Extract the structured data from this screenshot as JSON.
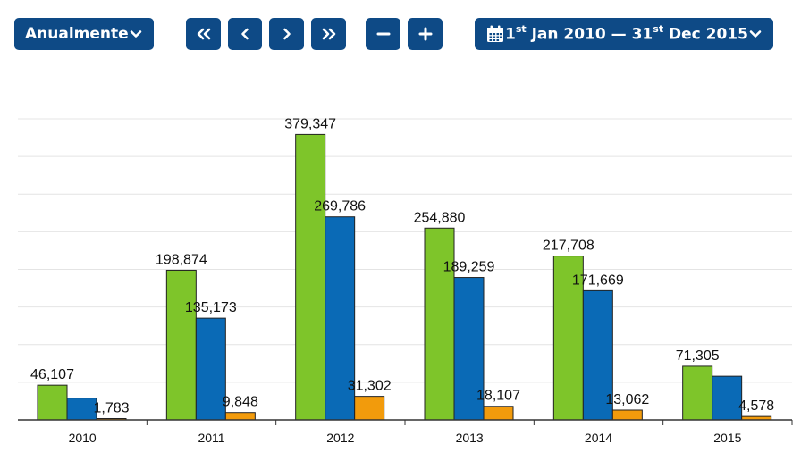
{
  "toolbar": {
    "period_label": "Anualmente",
    "date_range": {
      "start_day": "1",
      "start_suffix": "st",
      "start_rest": "Jan 2010 —",
      "end_day": "31",
      "end_suffix": "st",
      "end_rest": "Dec 2015"
    },
    "icons": {
      "period_dropdown": "chevron-down-icon",
      "first": "double-chevron-left-icon",
      "prev": "chevron-left-icon",
      "next": "chevron-right-icon",
      "last": "double-chevron-right-icon",
      "zoom_out": "minus-icon",
      "zoom_in": "plus-icon",
      "calendar": "calendar-icon",
      "date_dropdown": "chevron-down-icon"
    }
  },
  "colors": {
    "toolbar_bg": "#0e4a86",
    "series": [
      "#7ec52a",
      "#0a6ab6",
      "#f29b0c"
    ],
    "grid": "#e4e4e4",
    "axis": "#333333"
  },
  "chart_data": {
    "type": "bar",
    "categories": [
      "2010",
      "2011",
      "2012",
      "2013",
      "2014",
      "2015"
    ],
    "series": [
      {
        "values": [
          46107,
          198874,
          379347,
          254880,
          217708,
          71305
        ],
        "labels": [
          "46,107",
          "198,874",
          "379,347",
          "254,880",
          "217,708",
          "71,305"
        ]
      },
      {
        "values": [
          29000,
          135173,
          269786,
          189259,
          171669,
          58000
        ],
        "labels": [
          "",
          "135,173",
          "269,786",
          "189,259",
          "171,669",
          ""
        ]
      },
      {
        "values": [
          1783,
          9848,
          31302,
          18107,
          13062,
          4578
        ],
        "labels": [
          "1,783",
          "9,848",
          "31,302",
          "18,107",
          "13,062",
          "4,578"
        ]
      }
    ],
    "ylim": [
      0,
      400000
    ],
    "grid_lines": 8,
    "grid": true,
    "legend": "none"
  }
}
